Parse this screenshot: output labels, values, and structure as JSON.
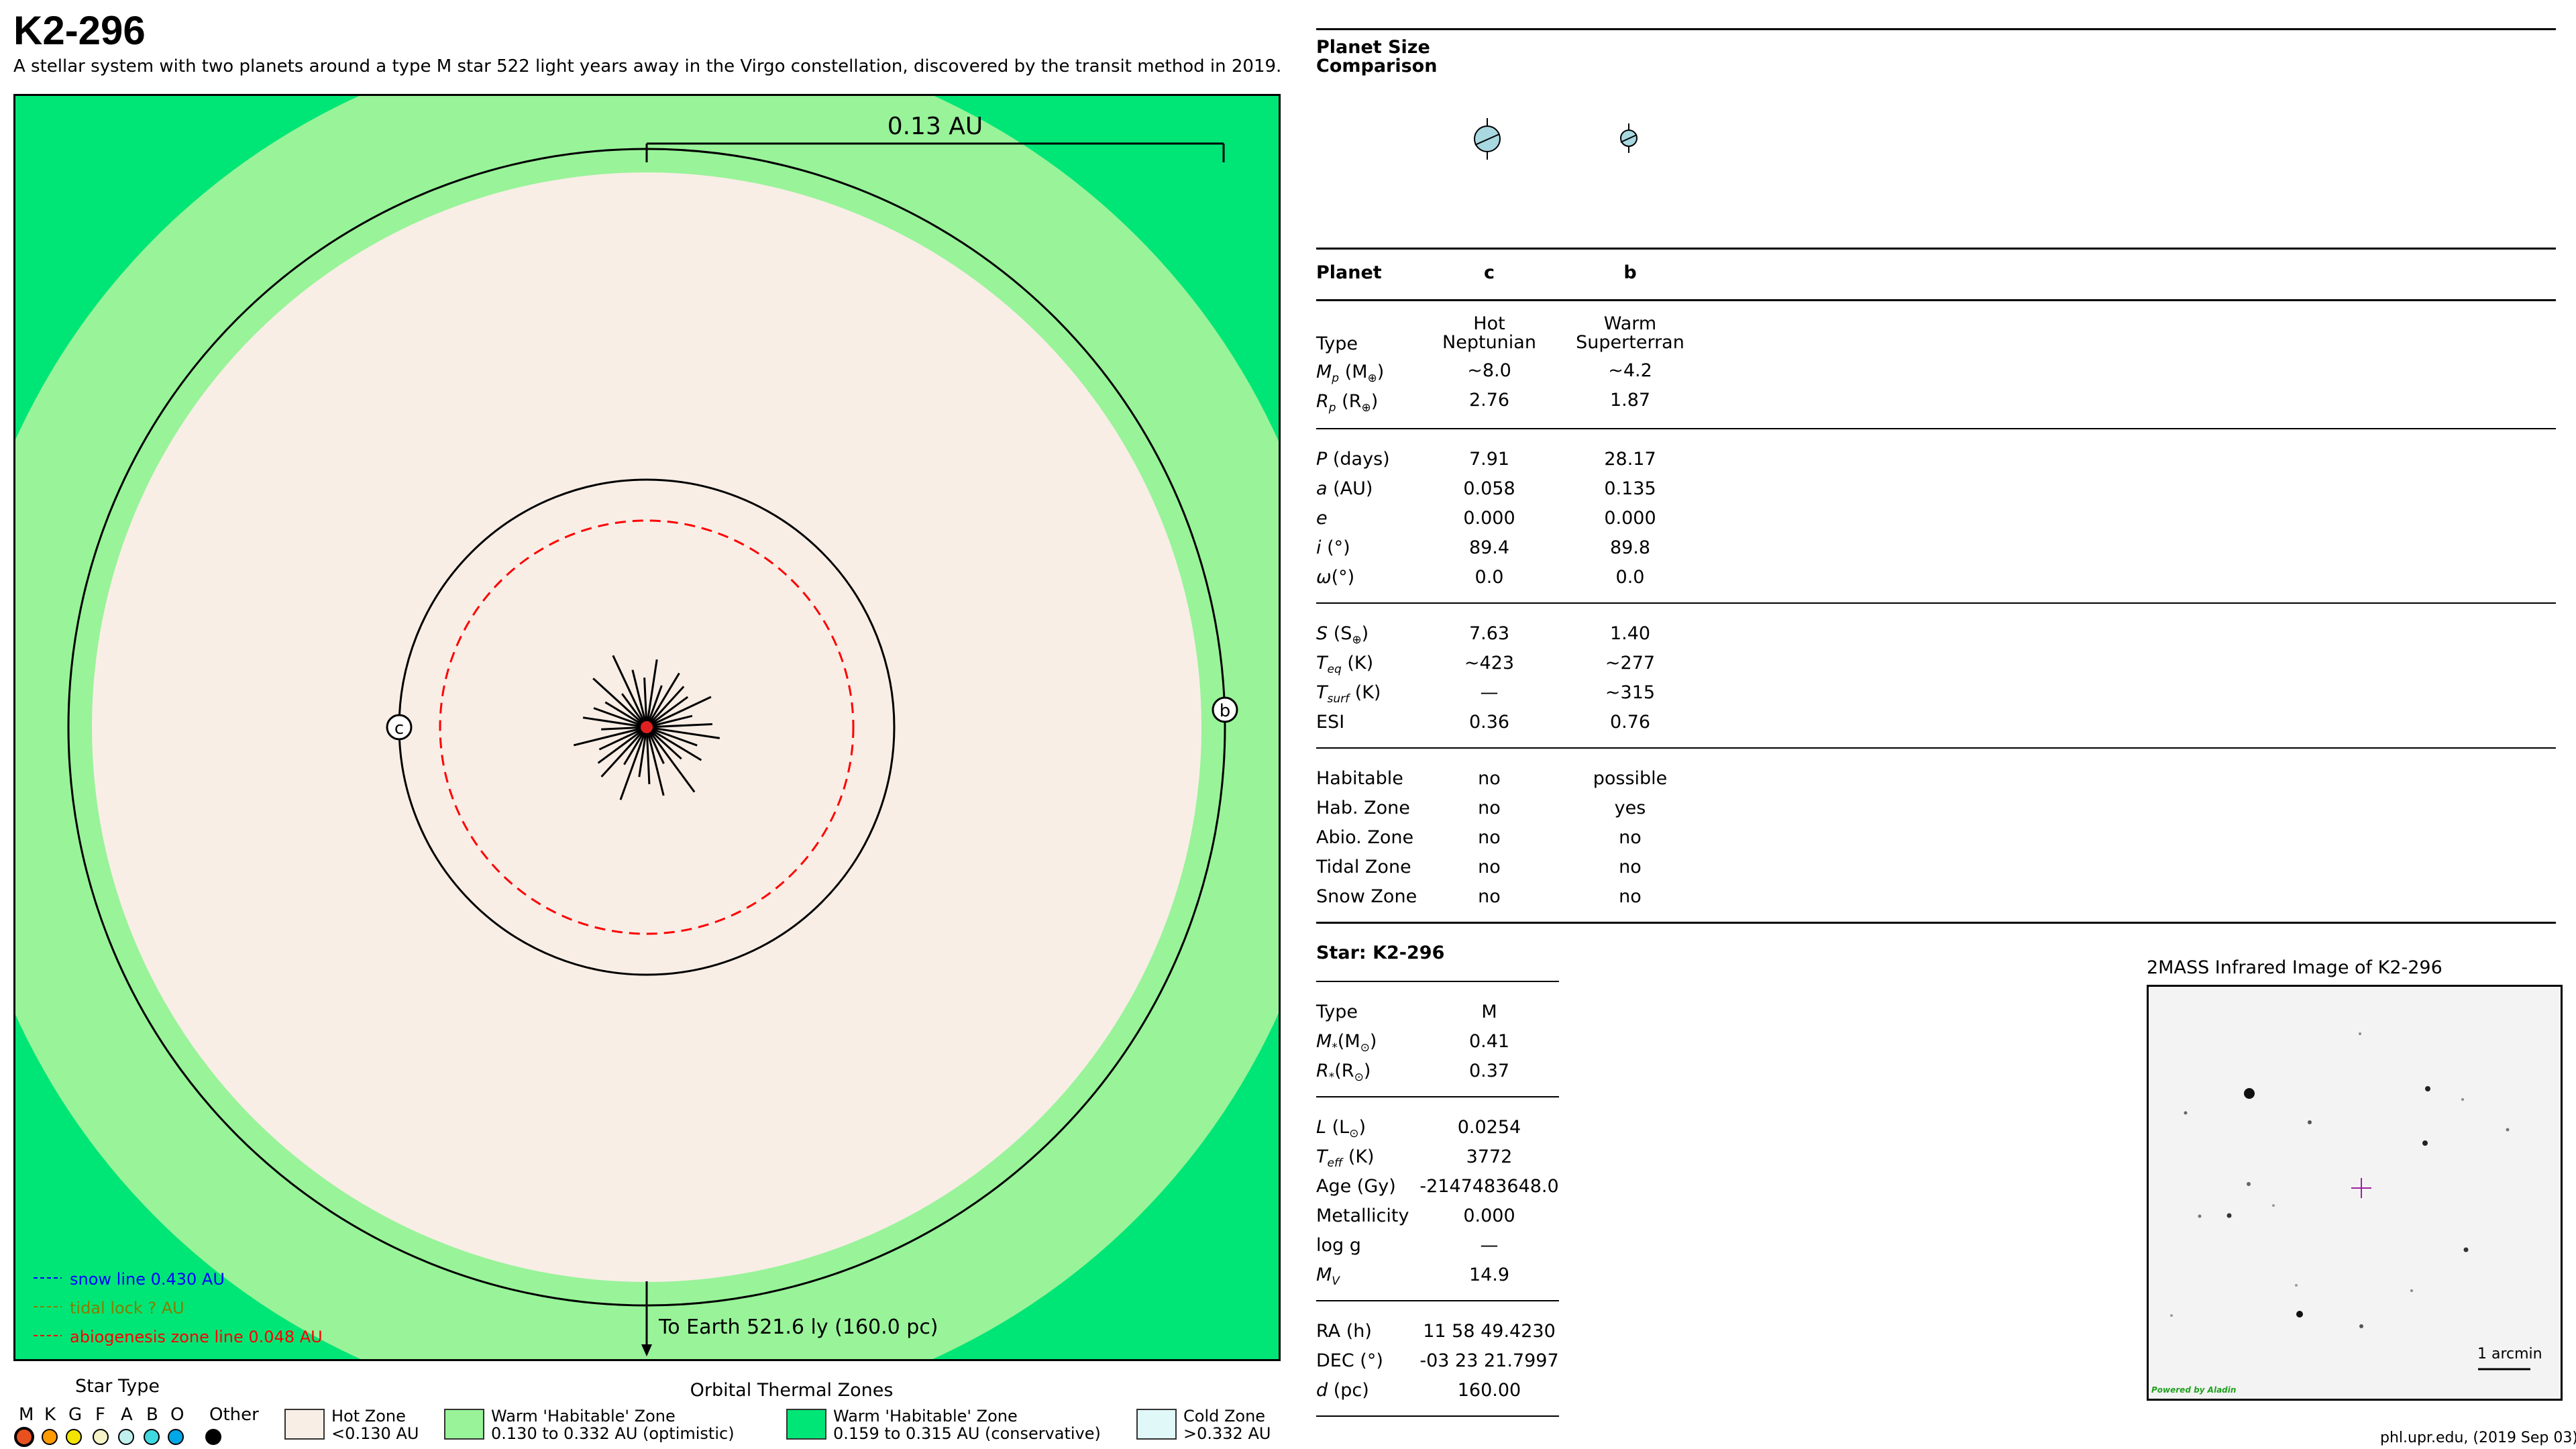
{
  "header": {
    "title": "K2-296",
    "subtitle": "A stellar system with two planets around a type M star 522 light years away in the Virgo constellation, discovered by the transit method in 2019."
  },
  "orbit_diagram": {
    "scale_label": "0.13 AU",
    "planet_c_label": "c",
    "planet_b_label": "b",
    "to_earth": "To Earth 521.6 ly (160.0 pc)",
    "colors": {
      "cold_zone_bg": "#00e676",
      "optimistic_zone": "#99f399",
      "hot_zone": "#f8eee6",
      "star": "#e02020",
      "snow_line": "#0000ff",
      "tidal_lock": "#808000",
      "abiogenesis": "#ff0000"
    },
    "lines": {
      "snow": "snow line 0.430 AU",
      "tidal": "tidal lock ? AU",
      "abio": "abiogenesis zone line 0.048 AU"
    }
  },
  "legend": {
    "star_type_title": "Star Type",
    "star_types": [
      "M",
      "K",
      "G",
      "F",
      "A",
      "B",
      "O",
      "Other"
    ],
    "star_colors": [
      "#e85020",
      "#ff9a00",
      "#f2e400",
      "#f4f4c8",
      "#bff0ee",
      "#40d8e0",
      "#00a8e8",
      "#000000"
    ],
    "zones_title": "Orbital Thermal Zones",
    "zones": [
      {
        "line1": "Hot Zone",
        "line2": "<0.130 AU",
        "color": "#f8eee6"
      },
      {
        "line1": "Warm 'Habitable' Zone",
        "line2": "0.130 to 0.332 AU (optimistic)",
        "color": "#99f399"
      },
      {
        "line1": "Warm 'Habitable' Zone",
        "line2": "0.159 to 0.315 AU (conservative)",
        "color": "#00e676"
      },
      {
        "line1": "Cold Zone",
        "line2": ">0.332 AU",
        "color": "#e0f8f8"
      }
    ]
  },
  "size_comparison": {
    "title_line1": "Planet Size",
    "title_line2": "Comparison"
  },
  "planet_table": {
    "header": {
      "label": "Planet",
      "c": "c",
      "b": "b"
    },
    "type_label": "Type",
    "type_c": [
      "Hot",
      "Neptunian"
    ],
    "type_b": [
      "Warm",
      "Superterran"
    ],
    "rows1": [
      {
        "label": "M",
        "sub": "p",
        "unit": "(M",
        "unitsub": "⊕",
        "close": ")",
        "c": "~8.0",
        "b": "~4.2"
      },
      {
        "label": "R",
        "sub": "p",
        "unit": "(R",
        "unitsub": "⊕",
        "close": ")",
        "c": "2.76",
        "b": "1.87"
      }
    ],
    "rows2": [
      {
        "label": "P",
        "unit": " (days)",
        "c": "7.91",
        "b": "28.17"
      },
      {
        "label": "a",
        "unit": " (AU)",
        "c": "0.058",
        "b": "0.135"
      },
      {
        "label": "e",
        "unit": "",
        "c": "0.000",
        "b": "0.000"
      },
      {
        "label": "i",
        "unit": " (°)",
        "c": "89.4",
        "b": "89.8"
      },
      {
        "label": "ω",
        "unit": "(°)",
        "c": "0.0",
        "b": "0.0"
      }
    ],
    "rows3": [
      {
        "label": "S",
        "sub": "",
        "unit": " (S",
        "unitsub": "⊕",
        "close": ")",
        "c": "7.63",
        "b": "1.40"
      },
      {
        "label": "T",
        "sub": "eq",
        "unit": " (K)",
        "unitsub": "",
        "close": "",
        "c": "~423",
        "b": "~277"
      },
      {
        "label": "T",
        "sub": "surf",
        "unit": " (K)",
        "unitsub": "",
        "close": "",
        "c": "—",
        "b": "~315"
      },
      {
        "label": "ESI",
        "sub": "",
        "unit": "",
        "unitsub": "",
        "close": "",
        "c": "0.36",
        "b": "0.76",
        "plain": true
      }
    ],
    "rows4": [
      {
        "label": "Habitable",
        "c": "no",
        "b": "possible"
      },
      {
        "label": "Hab. Zone",
        "c": "no",
        "b": "yes"
      },
      {
        "label": "Abio. Zone",
        "c": "no",
        "b": "no"
      },
      {
        "label": "Tidal Zone",
        "c": "no",
        "b": "no"
      },
      {
        "label": "Snow Zone",
        "c": "no",
        "b": "no"
      }
    ]
  },
  "star_table": {
    "title": "Star: K2-296",
    "type_label": "Type",
    "type_value": "M",
    "mass_label": "M",
    "mass_sub": "*",
    "mass_unit": "(M",
    "mass_unitsub": "⊙",
    "mass_value": "0.41",
    "radius_label": "R",
    "radius_sub": "*",
    "radius_unit": "(R",
    "radius_unitsub": "⊙",
    "radius_value": "0.37",
    "lum_label": "L",
    "lum_unit": " (L",
    "lum_unitsub": "⊙",
    "lum_value": "0.0254",
    "teff_label": "T",
    "teff_sub": "eff",
    "teff_unit": " (K)",
    "teff_value": "3772",
    "age_label": "Age (Gy)",
    "age_value": "-2147483648.0",
    "metal_label": "Metallicity",
    "metal_value": "0.000",
    "logg_label": "log g",
    "logg_value": "—",
    "mv_label": "M",
    "mv_sub": "V",
    "mv_value": "14.9",
    "ra_label": "RA (h)",
    "ra_value": "11 58 49.4230",
    "dec_label": "DEC (°)",
    "dec_value": "-03 23 21.7997",
    "d_label": "d",
    "d_unit": " (pc)",
    "d_value": "160.00"
  },
  "ir_image": {
    "title": "2MASS Infrared Image of K2-296",
    "scale": "1 arcmin",
    "credit": "Powered by Aladin"
  },
  "footer": {
    "source": "phl.upr.edu, (2019 Sep 03)"
  }
}
